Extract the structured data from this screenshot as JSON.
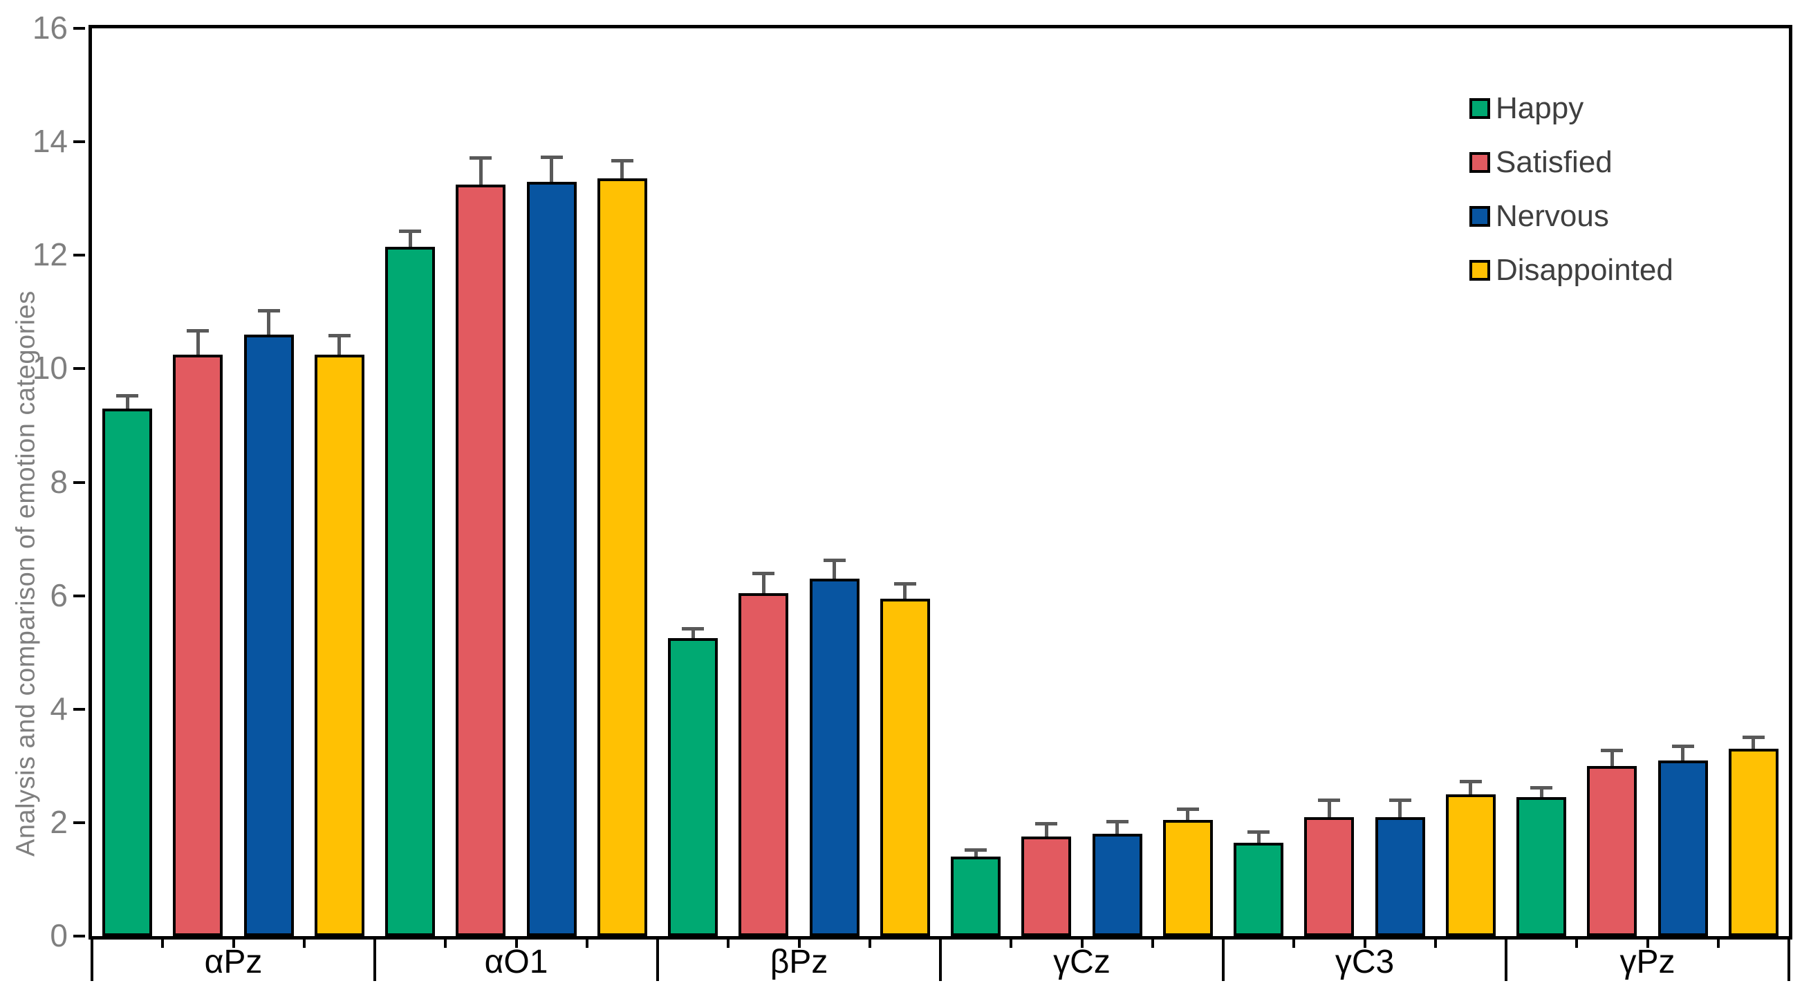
{
  "chart_data": {
    "type": "bar",
    "title": "",
    "xlabel": "",
    "ylabel": "Analysis and comparison of emotion categories",
    "ylim": [
      0,
      16
    ],
    "yticks": [
      0,
      2,
      4,
      6,
      8,
      10,
      12,
      14,
      16
    ],
    "grid": false,
    "legend_position": "top-right",
    "categories": [
      "αPz",
      "αO1",
      "βPz",
      "γCz",
      "γC3",
      "γPz"
    ],
    "series": [
      {
        "name": "Happy",
        "color": "#00A972",
        "values": [
          9.3,
          12.15,
          5.25,
          1.4,
          1.65,
          2.45
        ],
        "errors": [
          0.25,
          0.3,
          0.2,
          0.15,
          0.22,
          0.2
        ]
      },
      {
        "name": "Satisfied",
        "color": "#E25A60",
        "values": [
          10.25,
          13.25,
          6.05,
          1.75,
          2.1,
          3.0
        ],
        "errors": [
          0.45,
          0.5,
          0.37,
          0.26,
          0.33,
          0.3
        ]
      },
      {
        "name": "Nervous",
        "color": "#0855A1",
        "values": [
          10.6,
          13.3,
          6.3,
          1.8,
          2.1,
          3.1
        ],
        "errors": [
          0.45,
          0.46,
          0.35,
          0.25,
          0.33,
          0.28
        ]
      },
      {
        "name": "Disappointed",
        "color": "#FFC103",
        "values": [
          10.25,
          13.35,
          5.95,
          2.05,
          2.5,
          3.3
        ],
        "errors": [
          0.36,
          0.35,
          0.29,
          0.22,
          0.26,
          0.24
        ]
      }
    ],
    "colors": {
      "bar_outline": "#000000",
      "error_bar": "#595959",
      "axis_text": "#7F7F7F",
      "category_text": "#000000",
      "legend_text": "#3F3F3F",
      "axis_line": "#000000"
    }
  }
}
